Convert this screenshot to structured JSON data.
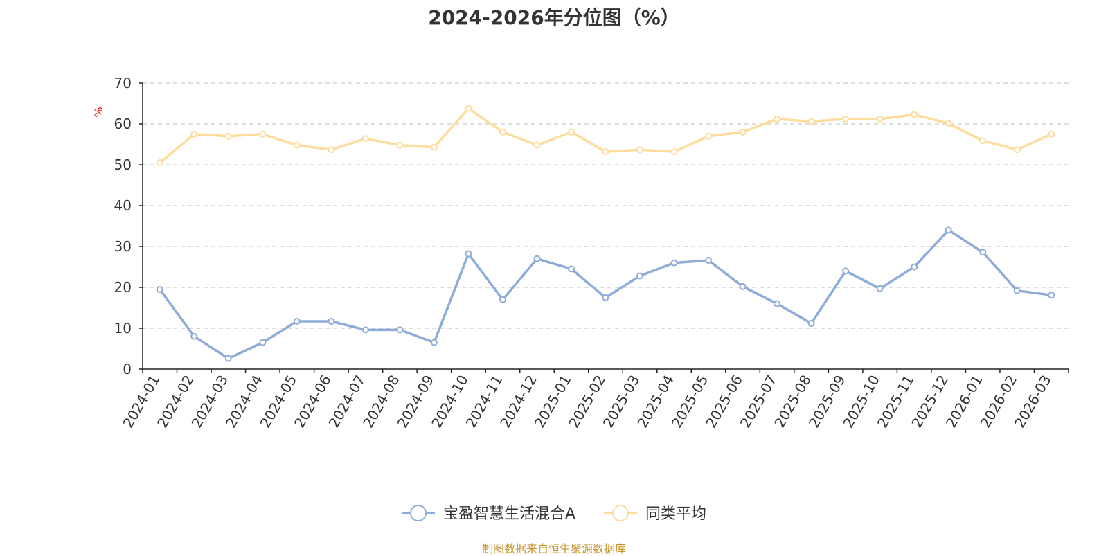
{
  "chart_data": {
    "type": "line",
    "title": "2024-2026年分位图（%）",
    "ylabel": "%",
    "xlabel": "",
    "ylim": [
      0,
      70
    ],
    "yticks": [
      0,
      10,
      20,
      30,
      40,
      50,
      60,
      70
    ],
    "grid": true,
    "legend_position": "bottom-center",
    "categories": [
      "2024-01",
      "2024-02",
      "2024-03",
      "2024-04",
      "2024-05",
      "2024-06",
      "2024-07",
      "2024-08",
      "2024-09",
      "2024-10",
      "2024-11",
      "2024-12",
      "2025-01",
      "2025-02",
      "2025-03",
      "2025-04",
      "2025-05",
      "2025-06",
      "2025-07",
      "2025-08",
      "2025-09",
      "2025-10",
      "2025-11",
      "2025-12",
      "2026-01",
      "2026-02",
      "2026-03"
    ],
    "series": [
      {
        "name": "宝盈智慧生活混合A",
        "color": "#8eacd8",
        "values": [
          19.5,
          8.0,
          2.6,
          6.5,
          11.7,
          11.7,
          9.6,
          9.6,
          6.5,
          28.2,
          17.0,
          27.0,
          24.5,
          17.5,
          22.8,
          26.0,
          26.6,
          20.2,
          16.0,
          11.2,
          24.0,
          19.7,
          25.0,
          34.0,
          28.6,
          19.2,
          18.1
        ]
      },
      {
        "name": "同类平均",
        "color": "#fddc9c",
        "values": [
          50.5,
          57.5,
          57.0,
          57.5,
          54.8,
          53.7,
          56.4,
          54.8,
          54.3,
          63.8,
          58.0,
          54.8,
          58.0,
          53.2,
          53.7,
          53.2,
          57.0,
          58.0,
          61.2,
          60.6,
          61.2,
          61.2,
          62.3,
          60.1,
          55.9,
          53.7,
          57.5
        ]
      }
    ]
  },
  "source_note": "制图数据来自恒生聚源数据库"
}
